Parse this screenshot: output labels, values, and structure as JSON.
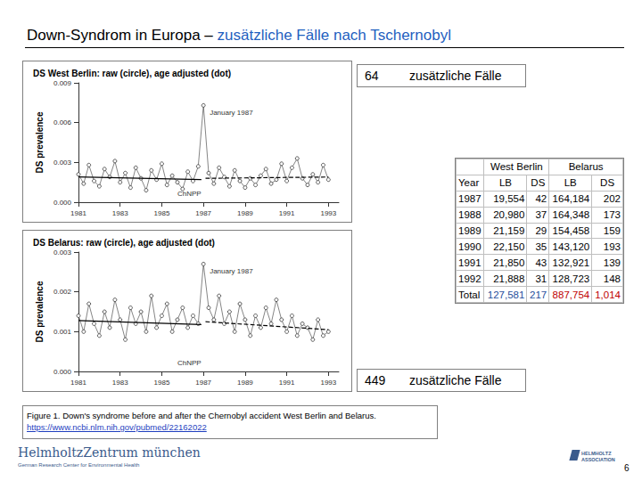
{
  "slide": {
    "title": {
      "text": "Down-Syndrom in Europa – ",
      "highlight": "zusätzliche Fälle nach Tschernobyl"
    },
    "notes": [
      {
        "number": 64,
        "text": "zusätzliche Fälle"
      },
      {
        "number": 449,
        "text": "zusätzliche Fälle"
      }
    ],
    "caption": {
      "text": "Figure 1. Down's syndrome before and after the Chernobyl accident West Berlin and Belarus.",
      "link": "https://www.ncbi.nlm.nih.gov/pubmed/22162022"
    },
    "footer": {
      "org": "HelmholtzZentrum münchen",
      "org_sub": "German Research Center for Environmental Health",
      "association": [
        "HELMHOLTZ",
        "ASSOCIATION"
      ],
      "page": 6
    }
  },
  "table": {
    "groups": [
      "West Berlin",
      "Belarus"
    ],
    "columns": [
      "Year",
      "LB",
      "DS",
      "LB",
      "DS"
    ],
    "rows": [
      [
        1987,
        "19,554",
        42,
        "164,184",
        202
      ],
      [
        1988,
        "20,980",
        37,
        "164,348",
        173
      ],
      [
        1989,
        "21,159",
        29,
        "154,458",
        159
      ],
      [
        1990,
        "22,150",
        35,
        "143,120",
        193
      ],
      [
        1991,
        "21,850",
        43,
        "132,921",
        139
      ],
      [
        1992,
        "21,888",
        31,
        "128,723",
        148
      ]
    ],
    "total": [
      "Total",
      "127,581",
      217,
      "887,754",
      "1,014"
    ]
  },
  "chart_data": [
    {
      "type": "line",
      "title": "DS West Berlin: raw (circle), age adjusted (dot)",
      "y_label": "DS prevalence",
      "xlim": [
        1981,
        1993.5
      ],
      "xticks": [
        1981,
        1983,
        1985,
        1987,
        1989,
        1991,
        1993
      ],
      "ylim": [
        0,
        0.009
      ],
      "yticks": [
        {
          "value": 0,
          "label": "0.000"
        },
        {
          "value": 0.003,
          "label": "0.003"
        },
        {
          "value": 0.006,
          "label": "0.006"
        },
        {
          "value": 0.009,
          "label": "0.009"
        }
      ],
      "grid": false,
      "series": [
        {
          "color": "#333333",
          "marker": "circle",
          "line_style": "solid",
          "x": [
            1981,
            1981.25,
            1981.5,
            1981.75,
            1982,
            1982.25,
            1982.5,
            1982.75,
            1983,
            1983.25,
            1983.5,
            1983.75,
            1984,
            1984.25,
            1984.5,
            1984.75,
            1985,
            1985.25,
            1985.5,
            1985.75,
            1986,
            1986.25,
            1986.5,
            1986.75,
            1987,
            1987.25,
            1987.5,
            1987.75,
            1988,
            1988.25,
            1988.5,
            1988.75,
            1989,
            1989.25,
            1989.5,
            1989.75,
            1990,
            1990.25,
            1990.5,
            1990.75,
            1991,
            1991.25,
            1991.5,
            1991.75,
            1992,
            1992.25,
            1992.5,
            1992.75,
            1993
          ],
          "values": [
            0.0021,
            0.0014,
            0.0028,
            0.0016,
            0.0012,
            0.0025,
            0.0019,
            0.0031,
            0.0015,
            0.0022,
            0.0011,
            0.0026,
            0.0018,
            0.0009,
            0.0024,
            0.0017,
            0.0029,
            0.0013,
            0.002,
            0.0015,
            0.001,
            0.0023,
            0.0016,
            0.0027,
            0.0073,
            0.0022,
            0.0014,
            0.0026,
            0.0019,
            0.0012,
            0.0024,
            0.0016,
            0.0011,
            0.0018,
            0.0013,
            0.002,
            0.0025,
            0.0014,
            0.0017,
            0.0029,
            0.0016,
            0.0026,
            0.0033,
            0.0018,
            0.0013,
            0.0021,
            0.0015,
            0.0028,
            0.0017
          ]
        },
        {
          "color": "#000000",
          "marker": "none",
          "line_style": "solid",
          "x": [
            1981,
            1986.9
          ],
          "values": [
            0.0019,
            0.0017
          ]
        },
        {
          "color": "#000000",
          "marker": "none",
          "line_style": "dashed",
          "x": [
            1987.1,
            1993
          ],
          "values": [
            0.0018,
            0.0019
          ]
        }
      ],
      "annotations": [
        {
          "text": "January 1987",
          "x": 1987
        },
        {
          "text": "ChNPP",
          "x": 1986.32
        }
      ]
    },
    {
      "type": "line",
      "title": "DS Belarus: raw (circle), age adjusted (dot)",
      "y_label": "DS prevalence",
      "xlim": [
        1981,
        1993.5
      ],
      "xticks": [
        1981,
        1983,
        1985,
        1987,
        1989,
        1991,
        1993
      ],
      "ylim": [
        0,
        0.003
      ],
      "yticks": [
        {
          "value": 0,
          "label": "0.000"
        },
        {
          "value": 0.001,
          "label": "0.001"
        },
        {
          "value": 0.002,
          "label": "0.002"
        },
        {
          "value": 0.003,
          "label": "0.003"
        }
      ],
      "grid": false,
      "series": [
        {
          "color": "#333333",
          "marker": "circle",
          "line_style": "solid",
          "x": [
            1981,
            1981.25,
            1981.5,
            1981.75,
            1982,
            1982.25,
            1982.5,
            1982.75,
            1983,
            1983.25,
            1983.5,
            1983.75,
            1984,
            1984.25,
            1984.5,
            1984.75,
            1985,
            1985.25,
            1985.5,
            1985.75,
            1986,
            1986.25,
            1986.5,
            1986.75,
            1987,
            1987.25,
            1987.5,
            1987.75,
            1988,
            1988.25,
            1988.5,
            1988.75,
            1989,
            1989.25,
            1989.5,
            1989.75,
            1990,
            1990.25,
            1990.5,
            1990.75,
            1991,
            1991.25,
            1991.5,
            1991.75,
            1992,
            1992.25,
            1992.5,
            1992.75,
            1993
          ],
          "values": [
            0.0014,
            0.001,
            0.0017,
            0.0012,
            0.0009,
            0.0015,
            0.0011,
            0.0018,
            0.0013,
            0.0008,
            0.0016,
            0.0012,
            0.0015,
            0.001,
            0.0019,
            0.0011,
            0.0014,
            0.0017,
            0.001,
            0.0013,
            0.0016,
            0.0011,
            0.0014,
            0.0012,
            0.0027,
            0.0016,
            0.0013,
            0.0019,
            0.0012,
            0.0015,
            0.001,
            0.0017,
            0.0013,
            0.0009,
            0.0014,
            0.0011,
            0.0016,
            0.0012,
            0.0018,
            0.0013,
            0.001,
            0.0014,
            0.0009,
            0.0012,
            0.0011,
            0.0008,
            0.0013,
            0.0009,
            0.001
          ]
        },
        {
          "color": "#000000",
          "marker": "none",
          "line_style": "solid",
          "x": [
            1981,
            1986.9
          ],
          "values": [
            0.00128,
            0.00118
          ]
        },
        {
          "color": "#000000",
          "marker": "none",
          "line_style": "dashed",
          "x": [
            1987.1,
            1993
          ],
          "values": [
            0.00125,
            0.00105
          ]
        }
      ],
      "annotations": [
        {
          "text": "January 1987",
          "x": 1987
        },
        {
          "text": "ChNPP",
          "x": 1986.32
        }
      ]
    }
  ]
}
